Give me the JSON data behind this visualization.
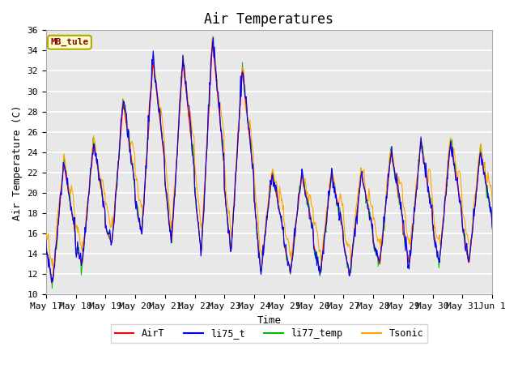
{
  "title": "Air Temperatures",
  "xlabel": "Time",
  "ylabel": "Air Temperature (C)",
  "annotation": "MB_tule",
  "ylim": [
    10,
    36
  ],
  "yticks": [
    10,
    12,
    14,
    16,
    18,
    20,
    22,
    24,
    26,
    28,
    30,
    32,
    34,
    36
  ],
  "series_colors": {
    "AirT": "#ff0000",
    "li75_t": "#0000ff",
    "li77_temp": "#00bb00",
    "Tsonic": "#ffa500"
  },
  "xtick_labels": [
    "May 17",
    "May 18",
    "May 19",
    "May 20",
    "May 21",
    "May 22",
    "May 23",
    "May 24",
    "May 25",
    "May 26",
    "May 27",
    "May 28",
    "May 29",
    "May 30",
    "May 31",
    "Jun 1"
  ],
  "bg_color": "#e8e8e8",
  "title_fontsize": 12,
  "axis_label_fontsize": 9,
  "tick_fontsize": 8
}
